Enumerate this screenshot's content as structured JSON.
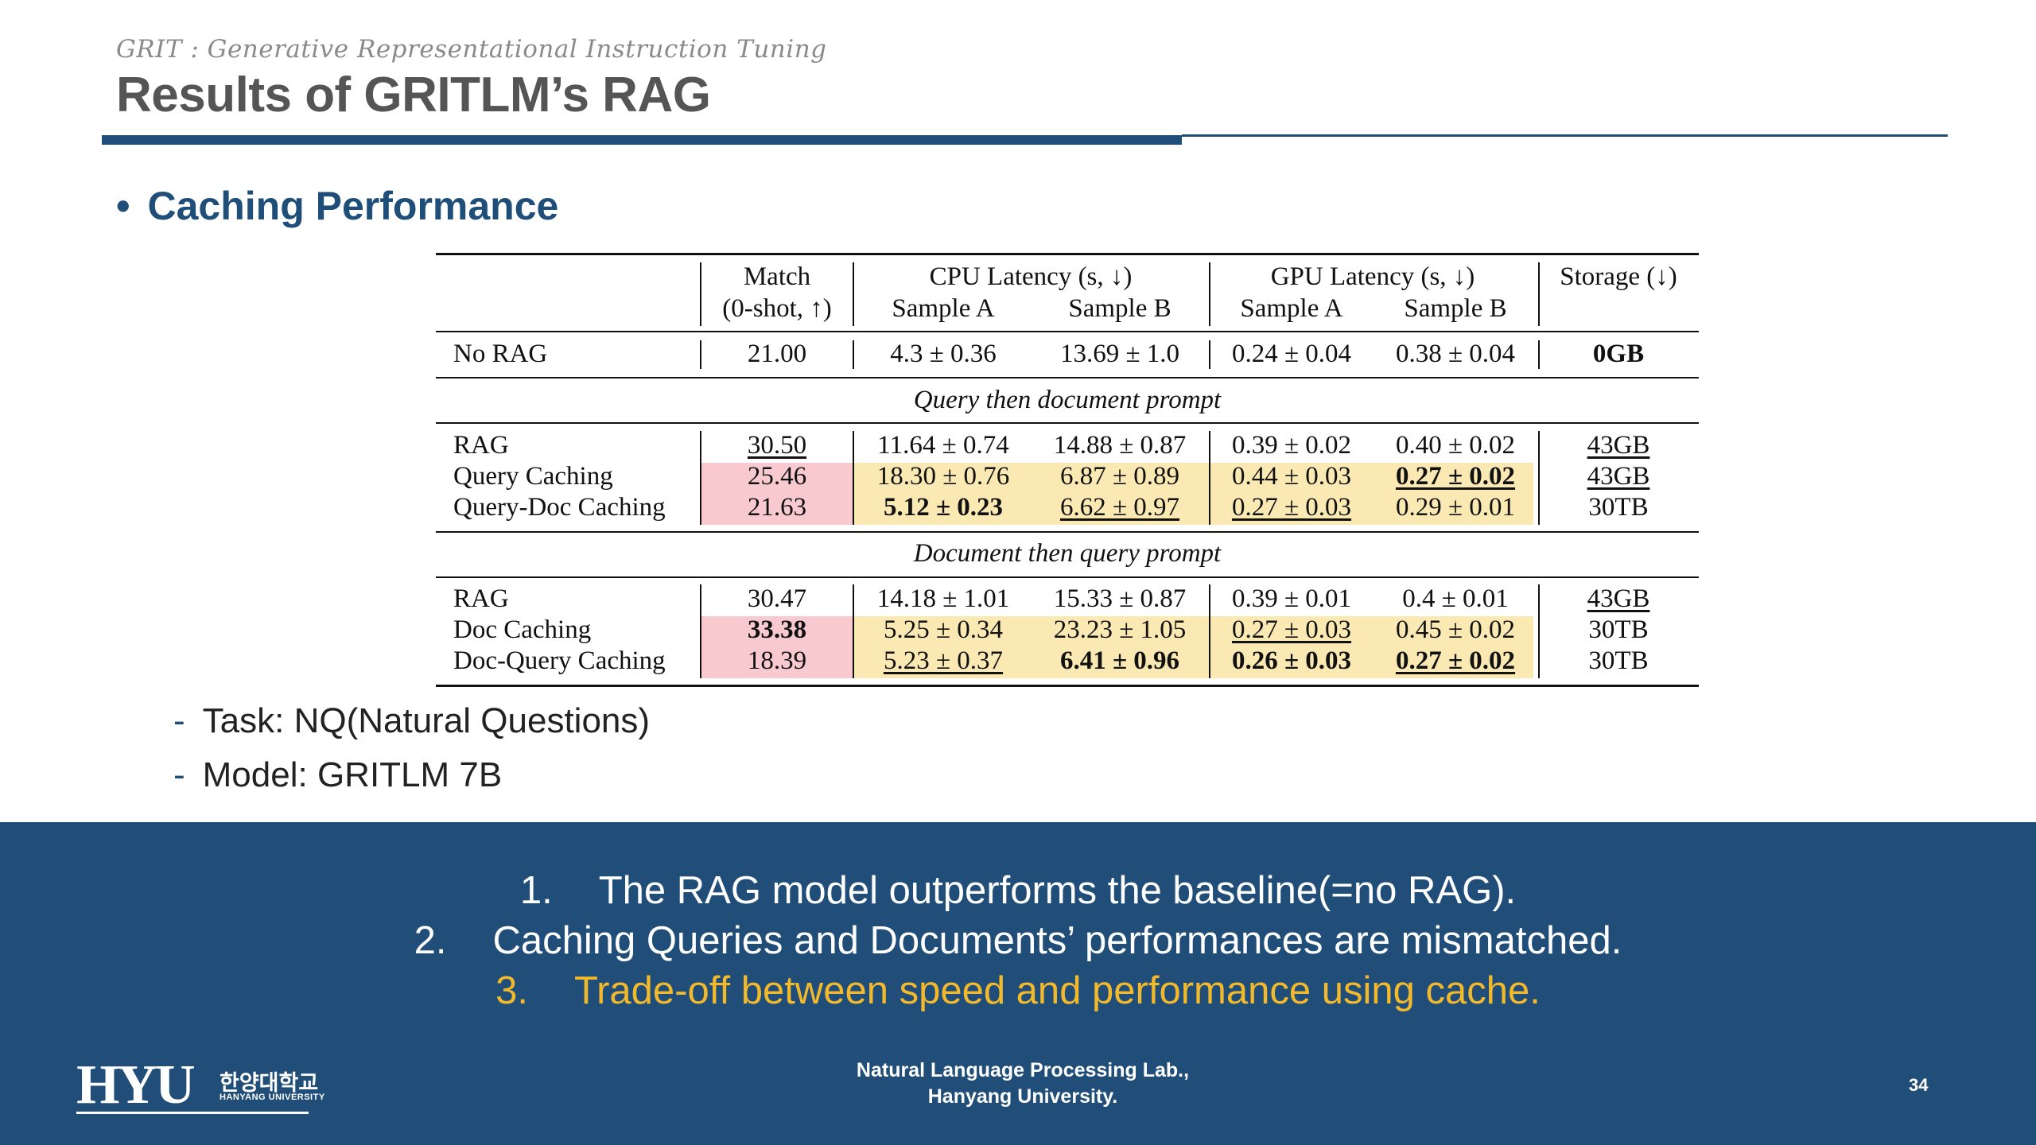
{
  "header": {
    "subtitle": "GRIT : Generative Representational Instruction Tuning",
    "title": "Results of GRITLM’s RAG"
  },
  "section": {
    "bullet_glyph": "•",
    "title": "Caching Performance"
  },
  "table": {
    "headers": {
      "match_top": "Match",
      "match_bottom": "(0-shot, ↑)",
      "cpu": "CPU Latency (s, ↓)",
      "gpu": "GPU Latency (s, ↓)",
      "storage": "Storage (↓)",
      "sample_a": "Sample A",
      "sample_b": "Sample B"
    },
    "section_labels": {
      "query_then_doc": "Query then document prompt",
      "doc_then_query": "Document then query prompt"
    },
    "rows": [
      {
        "label": "No RAG",
        "match": "21.00",
        "cpu_a": "4.3 ± 0.36",
        "cpu_b": "13.69 ± 1.0",
        "gpu_a": "0.24 ± 0.04",
        "gpu_b": "0.38 ± 0.04",
        "storage": "0GB"
      },
      {
        "label": "RAG",
        "match": "30.50",
        "cpu_a": "11.64 ± 0.74",
        "cpu_b": "14.88 ± 0.87",
        "gpu_a": "0.39 ± 0.02",
        "gpu_b": "0.40 ± 0.02",
        "storage": "43GB"
      },
      {
        "label": "Query Caching",
        "match": "25.46",
        "cpu_a": "18.30 ± 0.76",
        "cpu_b": "6.87 ± 0.89",
        "gpu_a": "0.44 ± 0.03",
        "gpu_b": "0.27 ± 0.02",
        "storage": "43GB"
      },
      {
        "label": "Query-Doc Caching",
        "match": "21.63",
        "cpu_a": "5.12 ± 0.23",
        "cpu_b": "6.62 ± 0.97",
        "gpu_a": "0.27 ± 0.03",
        "gpu_b": "0.29 ± 0.01",
        "storage": "30TB"
      },
      {
        "label": "RAG",
        "match": "30.47",
        "cpu_a": "14.18 ± 1.01",
        "cpu_b": "15.33 ± 0.87",
        "gpu_a": "0.39 ± 0.01",
        "gpu_b": "0.4 ± 0.01",
        "storage": "43GB"
      },
      {
        "label": "Doc Caching",
        "match": "33.38",
        "cpu_a": "5.25 ± 0.34",
        "cpu_b": "23.23 ± 1.05",
        "gpu_a": "0.27 ± 0.03",
        "gpu_b": "0.45 ± 0.02",
        "storage": "30TB"
      },
      {
        "label": "Doc-Query Caching",
        "match": "18.39",
        "cpu_a": "5.23 ± 0.37",
        "cpu_b": "6.41 ± 0.96",
        "gpu_a": "0.26 ± 0.03",
        "gpu_b": "0.27 ± 0.02",
        "storage": "30TB"
      }
    ],
    "highlight_colors": {
      "match_cells": "#f8c9cf",
      "latency_cells": "#fbe9b4"
    }
  },
  "notes": {
    "dash": "-",
    "task": "Task: NQ(Natural Questions)",
    "model": "Model: GRITLM 7B"
  },
  "conclusions": [
    {
      "num": "1.",
      "text": "The RAG model outperforms the baseline(=no RAG)."
    },
    {
      "num": "2.",
      "text": "Caching Queries and Documents’ performances are mismatched."
    },
    {
      "num": "3.",
      "text": "Trade-off between speed and performance using cache."
    }
  ],
  "footer": {
    "logo_text": "HYU",
    "logo_korean": "한양대학교",
    "logo_english": "HANYANG UNIVERSITY",
    "lab_line1": "Natural Language Processing Lab.,",
    "lab_line2": "Hanyang University.",
    "page_number": "34"
  },
  "colors": {
    "brand_blue": "#1f4e79",
    "band_blue": "#214e78",
    "highlight_yellow": "#f2b92c"
  }
}
